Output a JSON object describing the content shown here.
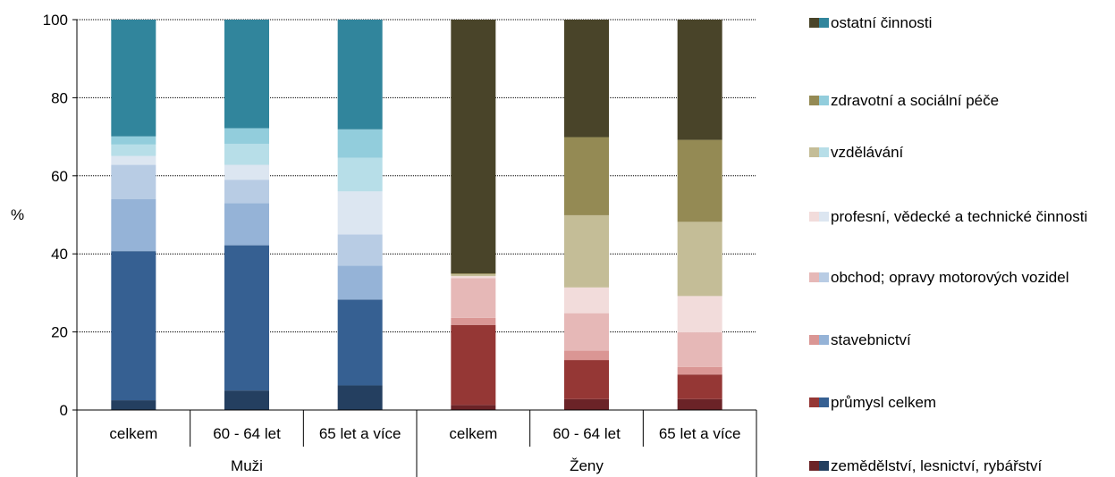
{
  "chart_data": {
    "type": "bar",
    "stacked": true,
    "ylabel": "%",
    "ylim": [
      0,
      100
    ],
    "yticks": [
      0,
      20,
      40,
      60,
      80,
      100
    ],
    "grid": true,
    "legend_position": "right",
    "categories": [
      "celkem",
      "60 - 64 let",
      "65 let a více",
      "celkem",
      "60 - 64 let",
      "65 let a více"
    ],
    "groups": [
      {
        "label": "Muži",
        "span": [
          0,
          2
        ]
      },
      {
        "label": "Ženy",
        "span": [
          3,
          5
        ]
      }
    ],
    "series": [
      {
        "name": "zemědělství, lesnictví, rybářství",
        "colors": [
          "#243F60",
          "#6B2327"
        ],
        "values": [
          2.5,
          5,
          6.3,
          1.3,
          2.8,
          2.8
        ]
      },
      {
        "name": "průmysl celkem",
        "colors": [
          "#366092",
          "#953735"
        ],
        "values": [
          38.2,
          37.2,
          22,
          20.5,
          10,
          6.3
        ]
      },
      {
        "name": "stavebnictví",
        "colors": [
          "#95B3D7",
          "#DA9694"
        ],
        "values": [
          13.3,
          10.8,
          8.7,
          1.8,
          2.4,
          1.9
        ]
      },
      {
        "name": "obchod; opravy motorových vozidel",
        "colors": [
          "#B8CCE4",
          "#E6B8B7"
        ],
        "values": [
          8.8,
          6,
          8,
          10.2,
          9.6,
          8.9
        ]
      },
      {
        "name": "profesní, vědecké a technické činnosti",
        "colors": [
          "#DCE6F1",
          "#F2DCDB"
        ],
        "values": [
          2.3,
          3.8,
          11,
          0.5,
          6.6,
          9.3
        ]
      },
      {
        "name": "vzdělávání",
        "colors": [
          "#B7DEE8",
          "#C4BD97"
        ],
        "values": [
          2.9,
          5.4,
          8.6,
          0.5,
          18.5,
          19
        ]
      },
      {
        "name": "zdravotní a sociální péče",
        "colors": [
          "#92CDDC",
          "#948A54"
        ],
        "values": [
          2.1,
          4,
          7.3,
          0.2,
          20,
          21
        ]
      },
      {
        "name": "ostatní činnosti",
        "colors": [
          "#31859C",
          "#494429"
        ],
        "values": [
          29.9,
          27.8,
          28.1,
          65,
          30.1,
          30.8
        ]
      }
    ]
  }
}
